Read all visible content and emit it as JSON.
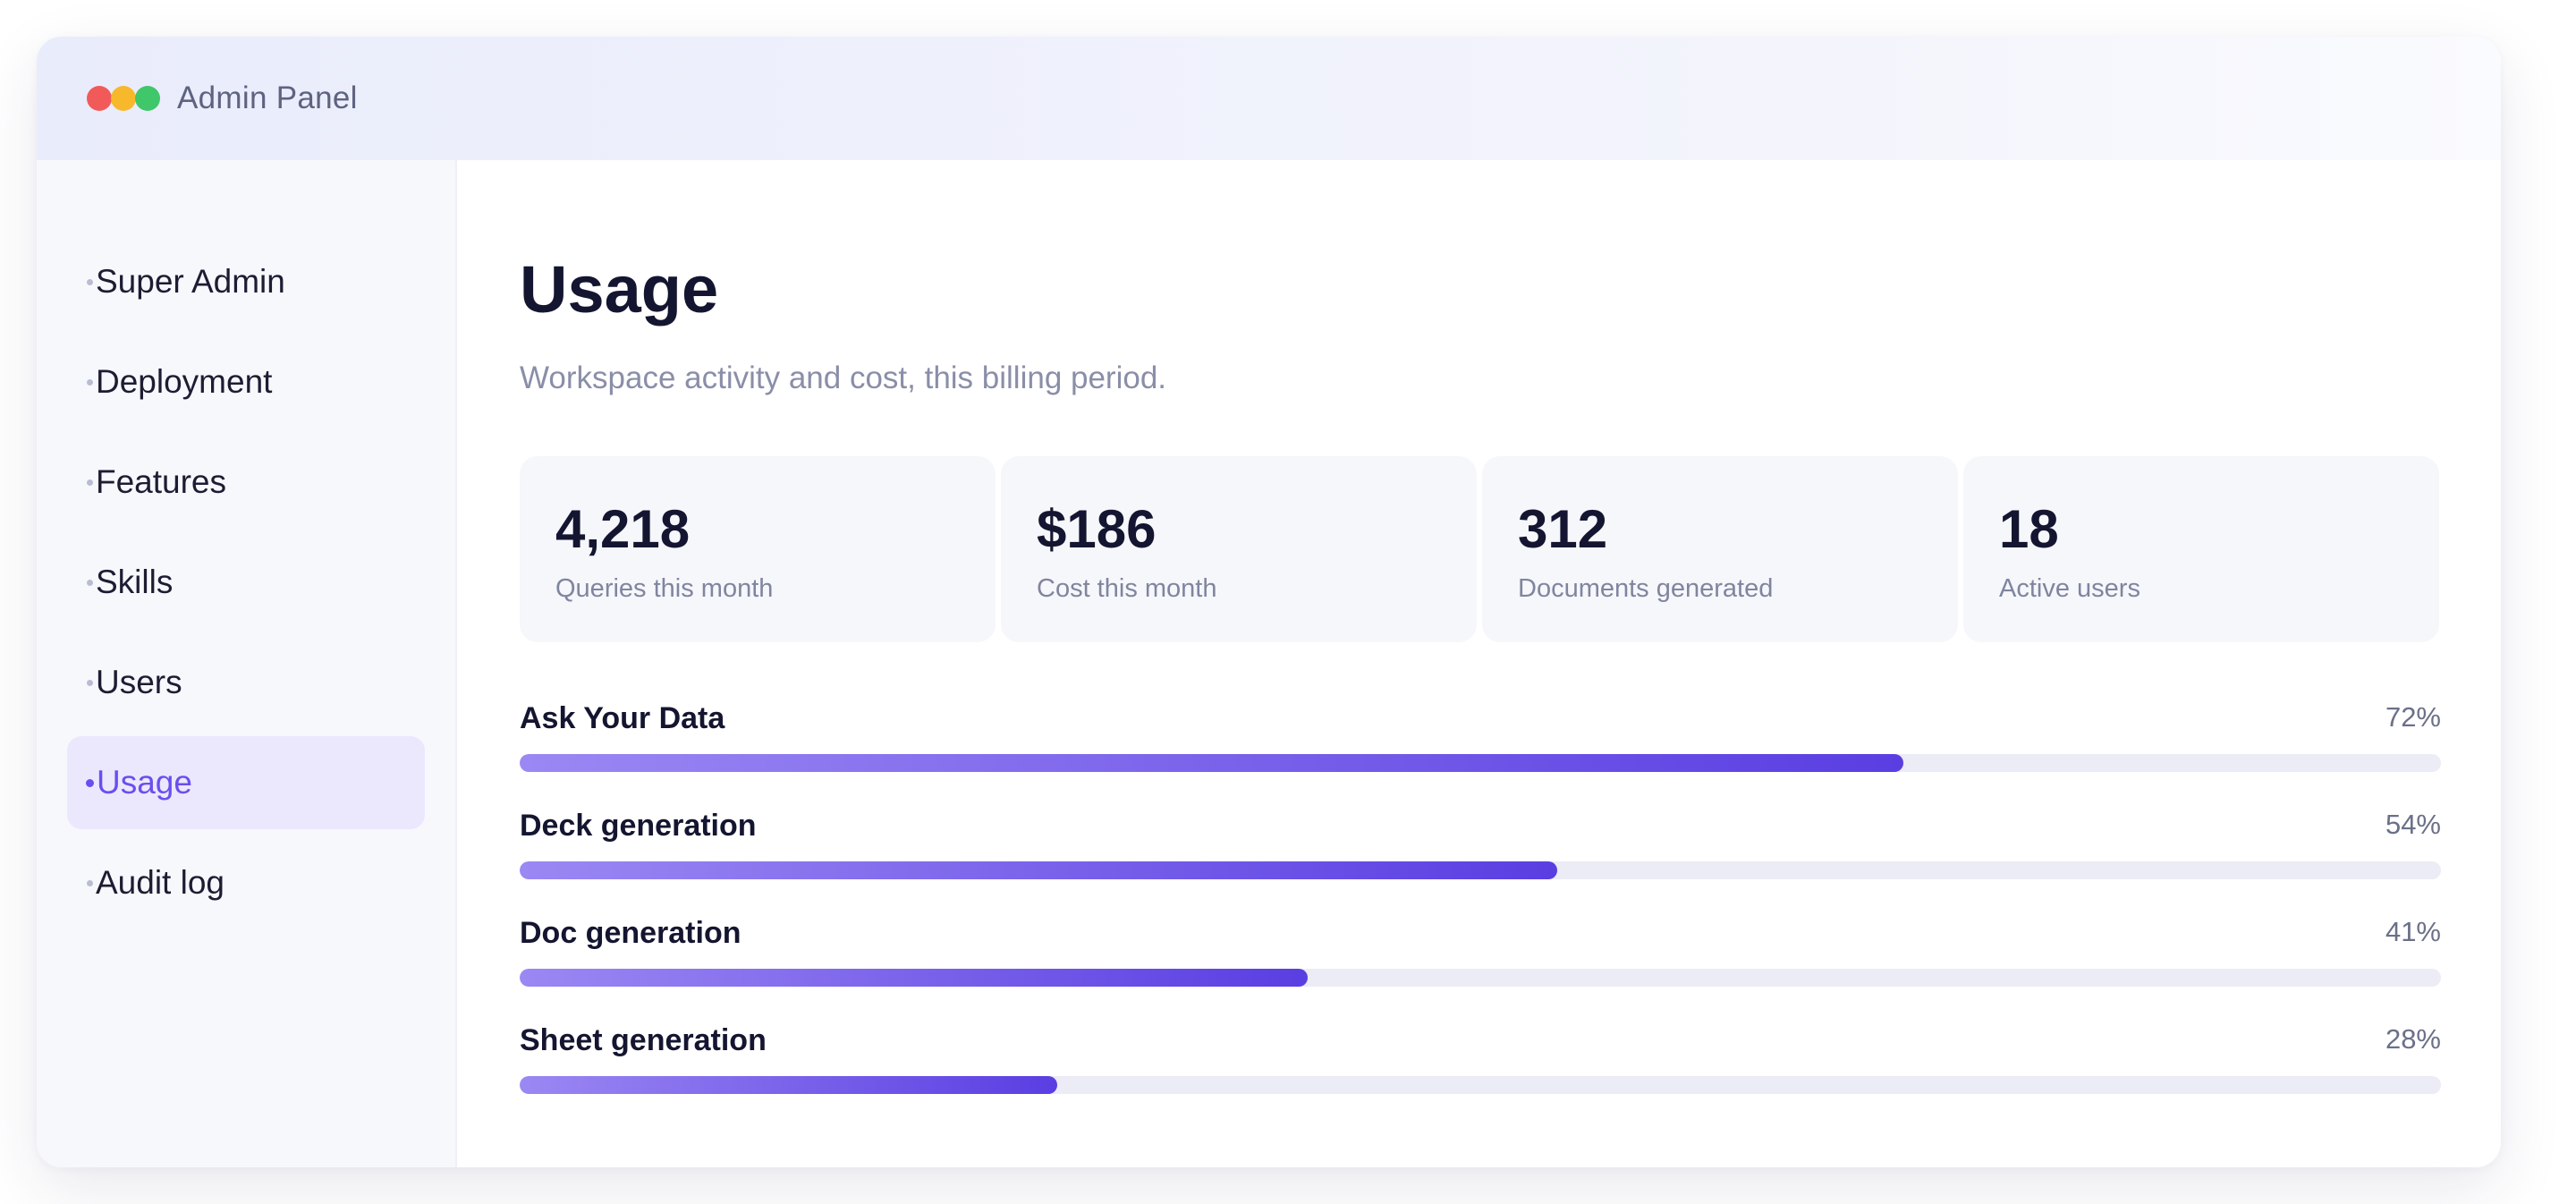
{
  "window": {
    "title": "Admin Panel",
    "traffic_lights": [
      "#f25a5a",
      "#f7b92b",
      "#3fc76a"
    ]
  },
  "sidebar": {
    "items": [
      {
        "label": "Super Admin",
        "active": false
      },
      {
        "label": "Deployment",
        "active": false
      },
      {
        "label": "Features",
        "active": false
      },
      {
        "label": "Skills",
        "active": false
      },
      {
        "label": "Users",
        "active": false
      },
      {
        "label": "Usage",
        "active": true
      },
      {
        "label": "Audit log",
        "active": false
      }
    ]
  },
  "main": {
    "title": "Usage",
    "subtitle": "Workspace activity and cost, this billing period.",
    "stats": [
      {
        "value": "4,218",
        "label": "Queries this month"
      },
      {
        "value": "$186",
        "label": "Cost this month"
      },
      {
        "value": "312",
        "label": "Documents generated"
      },
      {
        "value": "18",
        "label": "Active users"
      }
    ],
    "usage": [
      {
        "label": "Ask Your Data",
        "percent": 72,
        "percent_text": "72%"
      },
      {
        "label": "Deck generation",
        "percent": 54,
        "percent_text": "54%"
      },
      {
        "label": "Doc generation",
        "percent": 41,
        "percent_text": "41%"
      },
      {
        "label": "Sheet generation",
        "percent": 28,
        "percent_text": "28%"
      }
    ]
  },
  "colors": {
    "accent": "#6a4ef0",
    "active_nav_bg": "#ebe8fd",
    "bar_start": "#9b88f3",
    "bar_end": "#5a3ee2"
  }
}
